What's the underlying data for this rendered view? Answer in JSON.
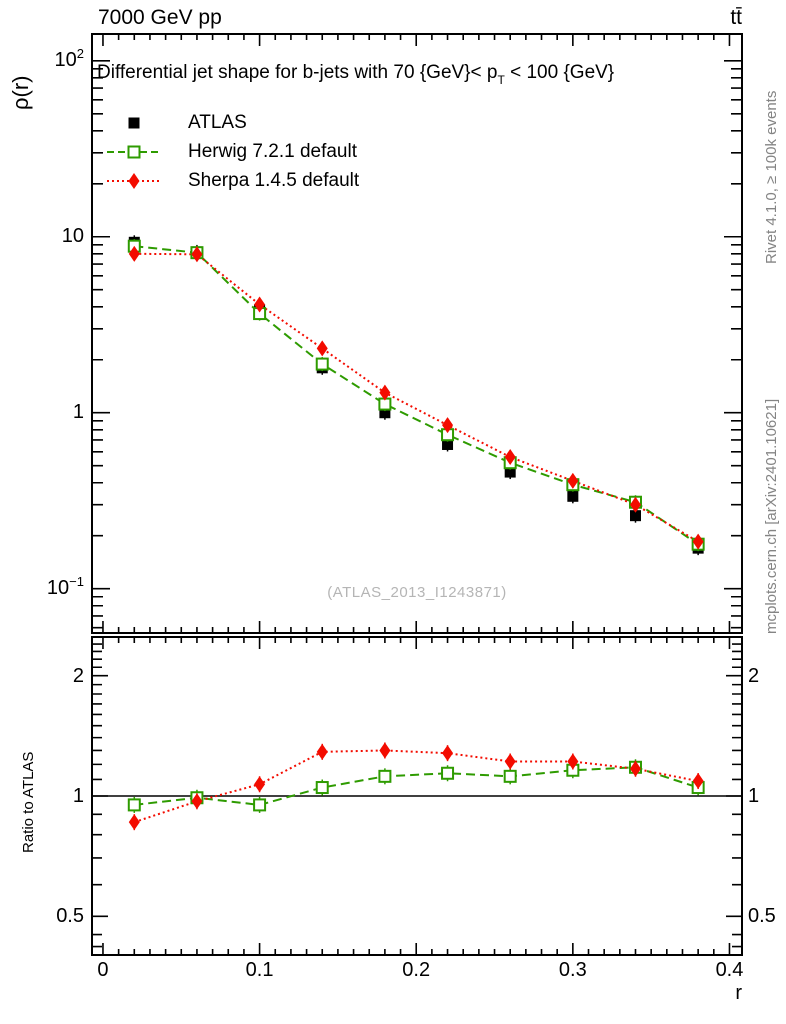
{
  "header": {
    "left": "7000 GeV pp",
    "right": "tt̄"
  },
  "title": {
    "pre": "Differential jet shape for b-jets with 70 {GeV}< p",
    "sub": "T",
    "post": " < 100 {GeV}"
  },
  "watermark": "(ATLAS_2013_I1243871)",
  "side_notes": {
    "top": "Rivet 4.1.0, ≥ 100k events",
    "bottom": "mcplots.cern.ch [arXiv:2401.10621]"
  },
  "axes": {
    "main_ylabel": "ρ(r)",
    "ratio_ylabel": "Ratio to ATLAS",
    "xlabel": "r"
  },
  "colors": {
    "atlas": "#000000",
    "herwig": "#2e9b00",
    "sherpa": "#f30c00",
    "frame": "#000000",
    "note_gray": "#848484",
    "watermark_gray": "#b5b5b5"
  },
  "chart_data": {
    "type": "line",
    "x": [
      0.02,
      0.06,
      0.1,
      0.14,
      0.18,
      0.22,
      0.26,
      0.3,
      0.34,
      0.38
    ],
    "series": [
      {
        "name": "ATLAS",
        "color": "#000000",
        "marker": "filled-square",
        "line": "none",
        "values": [
          9.3,
          8.2,
          3.85,
          1.8,
          1.0,
          0.66,
          0.46,
          0.335,
          0.26,
          0.17
        ]
      },
      {
        "name": "Herwig 7.2.1 default",
        "color": "#2e9b00",
        "marker": "open-square",
        "line": "dashed",
        "values": [
          8.84,
          8.12,
          3.66,
          1.89,
          1.12,
          0.75,
          0.52,
          0.39,
          0.31,
          0.179
        ],
        "ratio": [
          0.95,
          0.99,
          0.95,
          1.05,
          1.12,
          1.14,
          1.12,
          1.16,
          1.18,
          1.05
        ]
      },
      {
        "name": "Sherpa 1.4.5 default",
        "color": "#f30c00",
        "marker": "filled-diamond",
        "line": "dotted",
        "values": [
          8.0,
          7.95,
          4.12,
          2.32,
          1.3,
          0.85,
          0.56,
          0.41,
          0.3,
          0.185
        ],
        "ratio": [
          0.86,
          0.97,
          1.07,
          1.29,
          1.3,
          1.28,
          1.22,
          1.22,
          1.17,
          1.09
        ]
      }
    ],
    "xlim": [
      -0.007,
      0.408
    ],
    "main_ylim": [
      0.056,
      142
    ],
    "ratio_ylim": [
      0.4,
      2.5
    ],
    "main_yscale": "log",
    "ratio_yscale": "log",
    "ratio_reference": 1,
    "xticks": [
      {
        "value": 0.0,
        "label": "0"
      },
      {
        "value": 0.1,
        "label": "0.1"
      },
      {
        "value": 0.2,
        "label": "0.2"
      },
      {
        "value": 0.3,
        "label": "0.3"
      },
      {
        "value": 0.4,
        "label": "0.4"
      }
    ],
    "x_minor_step": 0.01,
    "main_yticks": [
      {
        "value": 100,
        "base": "10",
        "exp": "2"
      },
      {
        "value": 10,
        "base": "10",
        "exp": ""
      },
      {
        "value": 1,
        "base": "1",
        "exp": ""
      },
      {
        "value": 0.1,
        "base": "10",
        "exp": "−1"
      }
    ],
    "ratio_yticks": [
      {
        "value": 2,
        "label": "2"
      },
      {
        "value": 1,
        "label": "1"
      },
      {
        "value": 0.5,
        "label": "0.5"
      }
    ]
  }
}
